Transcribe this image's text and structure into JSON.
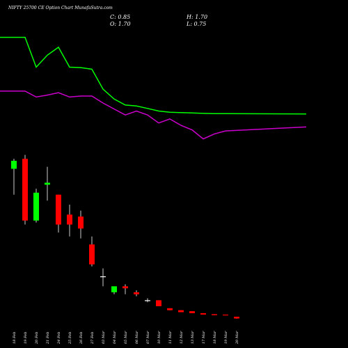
{
  "header": {
    "title": "NIFTY 25700  CE Option Chart MunafaSutra.com",
    "close_label": "C: 0.85",
    "high_label": "H: 1.70",
    "open_label": "O: 1.70",
    "low_label": "L: 0.75"
  },
  "chart_data": {
    "type": "candlestick",
    "background": "#000000",
    "colors": {
      "up": "#00ff00",
      "down": "#ff0000",
      "doji": "#ffffff",
      "line1": "#00ff00",
      "line2": "#cc00cc"
    },
    "ylim": [
      0,
      145
    ],
    "categories": [
      "18 Feb",
      "19 Feb",
      "20 Feb",
      "21 Feb",
      "24 Feb",
      "25 Feb",
      "26 Feb",
      "27 Feb",
      "03 Mar",
      "04 Mar",
      "05 Mar",
      "06 Mar",
      "07 Mar",
      "10 Mar",
      "11 Mar",
      "12 Mar",
      "13 Mar",
      "17 Mar",
      "18 Mar",
      "19 Mar",
      "20 Mar"
    ],
    "candles": [
      {
        "date": "18 Feb",
        "open": 76,
        "high": 81,
        "low": 63,
        "close": 80
      },
      {
        "date": "19 Feb",
        "open": 81,
        "high": 83,
        "low": 48,
        "close": 50
      },
      {
        "date": "20 Feb",
        "open": 50,
        "high": 66,
        "low": 49,
        "close": 64
      },
      {
        "date": "21 Feb",
        "open": 68,
        "high": 77,
        "low": 60,
        "close": 69
      },
      {
        "date": "24 Feb",
        "open": 63,
        "high": 63,
        "low": 44,
        "close": 48
      },
      {
        "date": "25 Feb",
        "open": 53,
        "high": 58,
        "low": 42,
        "close": 48
      },
      {
        "date": "26 Feb",
        "open": 52,
        "high": 55,
        "low": 41,
        "close": 46
      },
      {
        "date": "27 Feb",
        "open": 38,
        "high": 42,
        "low": 27,
        "close": 28
      },
      {
        "date": "03 Mar",
        "open": 22,
        "high": 26,
        "low": 17,
        "close": 22
      },
      {
        "date": "04 Mar",
        "open": 14,
        "high": 17,
        "low": 13,
        "close": 17
      },
      {
        "date": "05 Mar",
        "open": 17,
        "high": 18,
        "low": 13,
        "close": 16
      },
      {
        "date": "06 Mar",
        "open": 14,
        "high": 15,
        "low": 12,
        "close": 13
      },
      {
        "date": "07 Mar",
        "open": 10,
        "high": 11,
        "low": 9,
        "close": 10
      },
      {
        "date": "10 Mar",
        "open": 10,
        "high": 10,
        "low": 7,
        "close": 7
      },
      {
        "date": "11 Mar",
        "open": 6,
        "high": 6,
        "low": 5,
        "close": 5
      },
      {
        "date": "12 Mar",
        "open": 5,
        "high": 5,
        "low": 4,
        "close": 4
      },
      {
        "date": "13 Mar",
        "open": 4.5,
        "high": 4.5,
        "low": 3.5,
        "close": 3.5
      },
      {
        "date": "17 Mar",
        "open": 3.5,
        "high": 3.5,
        "low": 2.8,
        "close": 2.8
      },
      {
        "date": "18 Mar",
        "open": 3,
        "high": 3,
        "low": 2.5,
        "close": 2.5
      },
      {
        "date": "19 Mar",
        "open": 2.8,
        "high": 2.8,
        "low": 2.4,
        "close": 2.4
      },
      {
        "date": "20 Mar",
        "open": 1.7,
        "high": 1.7,
        "low": 0.75,
        "close": 0.85
      }
    ],
    "lines": [
      {
        "color": "#00ff00",
        "values": [
          142,
          142,
          127,
          133,
          137,
          127,
          126.8,
          126,
          116,
          111,
          108,
          107.5,
          106.3,
          105,
          104.4,
          104.2,
          104,
          103.8,
          103.7,
          103.7,
          103.5
        ]
      },
      {
        "color": "#cc00cc",
        "values": [
          115,
          115,
          112,
          113,
          114.2,
          112,
          112.5,
          112.5,
          109,
          106,
          103,
          105,
          103,
          99,
          101,
          97.8,
          95.5,
          91,
          93.5,
          95,
          97
        ]
      }
    ]
  }
}
